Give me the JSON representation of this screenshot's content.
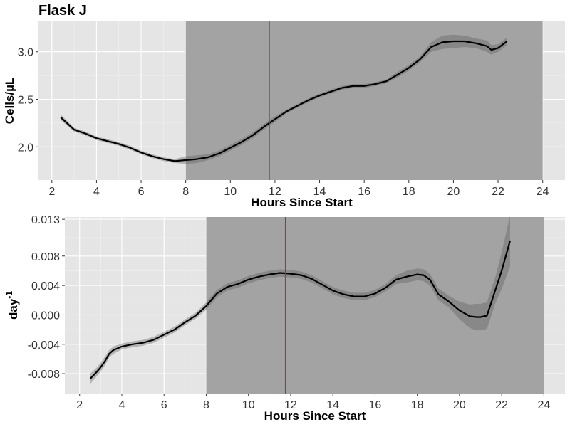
{
  "title": "Flask J",
  "chart_data": [
    {
      "type": "line",
      "xlabel": "Hours Since Start",
      "ylabel": "Cells/µL",
      "xlim": [
        1.4,
        25.0
      ],
      "ylim": [
        1.65,
        3.32
      ],
      "x_ticks": [
        2,
        4,
        6,
        8,
        10,
        12,
        14,
        16,
        18,
        20,
        22,
        24
      ],
      "x_tick_labels": [
        "2",
        "4",
        "6",
        "8",
        "10",
        "12",
        "14",
        "16",
        "18",
        "20",
        "22",
        "24"
      ],
      "y_ticks": [
        2.0,
        2.5,
        3.0
      ],
      "y_tick_labels": [
        "2.0",
        "2.5",
        "3.0"
      ],
      "shaded_region": [
        8,
        24
      ],
      "vline": 11.75,
      "grid": true,
      "series": [
        {
          "x": [
            2.4,
            3.0,
            3.5,
            4.0,
            4.5,
            5.0,
            5.5,
            6.0,
            6.5,
            7.0,
            7.5,
            8.0,
            8.5,
            9.0,
            9.5,
            10.0,
            10.5,
            11.0,
            11.5,
            12.0,
            12.5,
            13.0,
            13.5,
            14.0,
            14.5,
            15.0,
            15.5,
            16.0,
            16.5,
            17.0,
            17.5,
            18.0,
            18.5,
            19.0,
            19.5,
            20.0,
            20.5,
            21.0,
            21.5,
            21.7,
            22.0,
            22.4
          ],
          "y": [
            2.31,
            2.18,
            2.14,
            2.09,
            2.06,
            2.03,
            1.99,
            1.94,
            1.9,
            1.87,
            1.85,
            1.86,
            1.87,
            1.89,
            1.93,
            1.99,
            2.05,
            2.12,
            2.21,
            2.29,
            2.37,
            2.43,
            2.49,
            2.54,
            2.58,
            2.62,
            2.64,
            2.64,
            2.66,
            2.69,
            2.76,
            2.83,
            2.92,
            3.05,
            3.1,
            3.11,
            3.11,
            3.09,
            3.06,
            3.02,
            3.04,
            3.11
          ],
          "band": [
            0.03,
            0.02,
            0.02,
            0.02,
            0.02,
            0.02,
            0.02,
            0.02,
            0.02,
            0.02,
            0.02,
            0.04,
            0.04,
            0.03,
            0.03,
            0.03,
            0.03,
            0.03,
            0.03,
            0.03,
            0.02,
            0.02,
            0.02,
            0.02,
            0.02,
            0.02,
            0.02,
            0.02,
            0.02,
            0.02,
            0.03,
            0.03,
            0.03,
            0.05,
            0.07,
            0.07,
            0.06,
            0.05,
            0.06,
            0.05,
            0.04,
            0.04
          ]
        }
      ]
    },
    {
      "type": "line",
      "xlabel": "Hours Since Start",
      "ylabel": "day",
      "ylabel_superscript": "-1",
      "xlim": [
        1.3,
        25.0
      ],
      "ylim": [
        -0.0107,
        0.0133
      ],
      "x_ticks": [
        2,
        4,
        6,
        8,
        10,
        12,
        14,
        16,
        18,
        20,
        22,
        24
      ],
      "x_tick_labels": [
        "2",
        "4",
        "6",
        "8",
        "10",
        "12",
        "14",
        "16",
        "18",
        "20",
        "22",
        "24"
      ],
      "y_ticks": [
        -0.008,
        -0.004,
        0.0,
        0.004,
        0.008,
        0.013
      ],
      "y_tick_labels": [
        "-0.008",
        "-0.004",
        "0.000",
        "0.004",
        "0.008",
        "0.013"
      ],
      "shaded_region": [
        8,
        24
      ],
      "vline": 11.75,
      "grid": true,
      "series": [
        {
          "x": [
            2.5,
            2.8,
            3.0,
            3.2,
            3.4,
            3.6,
            4.0,
            4.5,
            5.0,
            5.5,
            6.0,
            6.5,
            7.0,
            7.5,
            8.0,
            8.5,
            9.0,
            9.5,
            10.0,
            10.5,
            11.0,
            11.5,
            12.0,
            12.5,
            13.0,
            13.5,
            14.0,
            14.5,
            15.0,
            15.5,
            16.0,
            16.5,
            17.0,
            17.5,
            18.0,
            18.3,
            18.6,
            19.0,
            19.5,
            20.0,
            20.5,
            20.8,
            21.0,
            21.3,
            21.5,
            21.7,
            22.0,
            22.4
          ],
          "y": [
            -0.0087,
            -0.0078,
            -0.0071,
            -0.0063,
            -0.0053,
            -0.0048,
            -0.0043,
            -0.004,
            -0.0038,
            -0.0034,
            -0.0027,
            -0.002,
            -0.001,
            -0.0001,
            0.0012,
            0.0029,
            0.0038,
            0.0042,
            0.0048,
            0.0052,
            0.0055,
            0.0057,
            0.0056,
            0.0054,
            0.0049,
            0.0041,
            0.0033,
            0.0028,
            0.0025,
            0.0025,
            0.0029,
            0.0037,
            0.0048,
            0.0052,
            0.0055,
            0.0054,
            0.0048,
            0.0028,
            0.0018,
            0.0006,
            -0.0002,
            -0.0003,
            -0.0003,
            -0.0001,
            0.0016,
            0.0034,
            0.006,
            0.0101
          ],
          "band": [
            0.0007,
            0.0006,
            0.0006,
            0.0006,
            0.0005,
            0.0005,
            0.0004,
            0.0004,
            0.0004,
            0.0004,
            0.0004,
            0.0004,
            0.0004,
            0.0004,
            0.0005,
            0.0005,
            0.0005,
            0.0005,
            0.0005,
            0.0005,
            0.0005,
            0.0005,
            0.0005,
            0.0005,
            0.0005,
            0.0005,
            0.0005,
            0.0005,
            0.0005,
            0.0005,
            0.0005,
            0.0005,
            0.0006,
            0.0008,
            0.0008,
            0.0008,
            0.0008,
            0.0008,
            0.0008,
            0.0012,
            0.0016,
            0.0018,
            0.0018,
            0.0018,
            0.0018,
            0.0018,
            0.0025,
            0.0035
          ]
        }
      ]
    }
  ]
}
